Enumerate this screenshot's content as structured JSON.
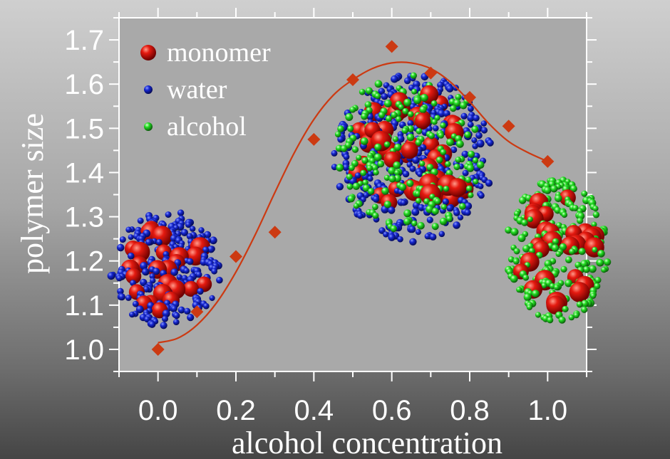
{
  "chart_data": {
    "type": "scatter",
    "xlabel": "alcohol concentration",
    "ylabel": "polymer size",
    "xlim": [
      -0.1,
      1.1
    ],
    "ylim": [
      0.95,
      1.75
    ],
    "x_ticks": [
      "0.0",
      "0.2",
      "0.4",
      "0.6",
      "0.8",
      "1.0"
    ],
    "x_tick_values": [
      0.0,
      0.2,
      0.4,
      0.6,
      0.8,
      1.0
    ],
    "y_ticks": [
      "1.0",
      "1.1",
      "1.2",
      "1.3",
      "1.4",
      "1.5",
      "1.6",
      "1.7"
    ],
    "y_tick_values": [
      1.0,
      1.1,
      1.2,
      1.3,
      1.4,
      1.5,
      1.6,
      1.7
    ],
    "series": [
      {
        "marker": "diamond",
        "color": "#cc3a12",
        "x": [
          0.0,
          0.1,
          0.2,
          0.3,
          0.4,
          0.5,
          0.6,
          0.7,
          0.8,
          0.9,
          1.0
        ],
        "y": [
          1.0,
          1.085,
          1.21,
          1.265,
          1.475,
          1.61,
          1.685,
          1.625,
          1.57,
          1.505,
          1.425
        ]
      }
    ],
    "fit_curve": {
      "color": "#cc3a12",
      "x": [
        0.0,
        0.05,
        0.1,
        0.15,
        0.2,
        0.25,
        0.3,
        0.35,
        0.4,
        0.45,
        0.5,
        0.55,
        0.6,
        0.65,
        0.7,
        0.75,
        0.8,
        0.85,
        0.9,
        0.95,
        1.0
      ],
      "y": [
        1.015,
        1.025,
        1.055,
        1.105,
        1.175,
        1.26,
        1.355,
        1.445,
        1.52,
        1.575,
        1.61,
        1.635,
        1.648,
        1.648,
        1.635,
        1.605,
        1.56,
        1.51,
        1.47,
        1.445,
        1.425
      ]
    },
    "legend": {
      "position": "top-left",
      "items": [
        {
          "label": "monomer",
          "color": "#ff1a10"
        },
        {
          "label": "water",
          "color": "#1020dd"
        },
        {
          "label": "alcohol",
          "color": "#22ee22"
        }
      ]
    },
    "grid": false
  }
}
